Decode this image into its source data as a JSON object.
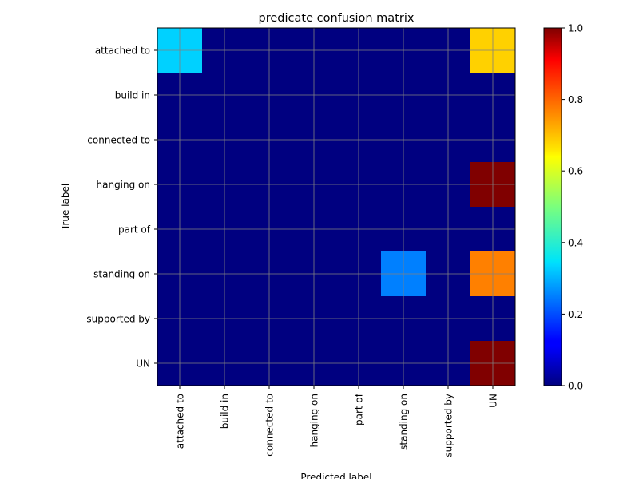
{
  "chart_data": {
    "type": "heatmap",
    "title": "predicate confusion matrix",
    "xlabel": "Predicted label",
    "ylabel": "True label",
    "x_categories": [
      "attached to",
      "build in",
      "connected to",
      "hanging on",
      "part of",
      "standing on",
      "supported by",
      "UN"
    ],
    "y_categories": [
      "attached to",
      "build in",
      "connected to",
      "hanging on",
      "part of",
      "standing on",
      "supported by",
      "UN"
    ],
    "values": [
      [
        0.33,
        0,
        0,
        0,
        0,
        0,
        0,
        0.67
      ],
      [
        0,
        0,
        0,
        0,
        0,
        0,
        0,
        0
      ],
      [
        0,
        0,
        0,
        0,
        0,
        0,
        0,
        0
      ],
      [
        0,
        0,
        0,
        0,
        0,
        0,
        0,
        1.0
      ],
      [
        0,
        0,
        0,
        0,
        0,
        0,
        0,
        0
      ],
      [
        0,
        0,
        0,
        0,
        0,
        0.25,
        0,
        0.75
      ],
      [
        0,
        0,
        0,
        0,
        0,
        0,
        0,
        0
      ],
      [
        0,
        0,
        0,
        0,
        0,
        0,
        0,
        1.0
      ]
    ],
    "colormap": "jet",
    "colorbar": {
      "range": [
        0.0,
        1.0
      ],
      "ticks": [
        0.0,
        0.2,
        0.4,
        0.6,
        0.8,
        1.0
      ],
      "tick_labels": [
        "0.0",
        "0.2",
        "0.4",
        "0.6",
        "0.8",
        "1.0"
      ]
    },
    "grid": true,
    "grid_color": "#808080"
  }
}
